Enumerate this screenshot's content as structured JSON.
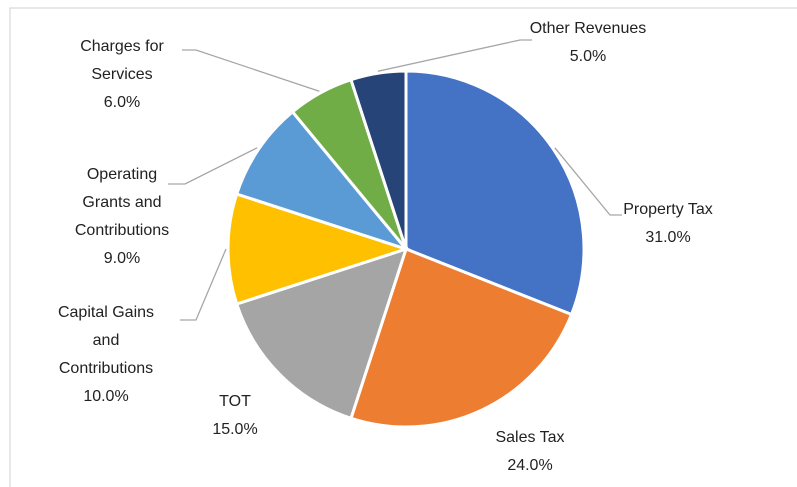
{
  "chart_data": {
    "type": "pie",
    "categories": [
      "Property Tax",
      "Sales Tax",
      "TOT",
      "Capital Gains and Contributions",
      "Operating Grants and Contributions",
      "Charges for Services",
      "Other Revenues"
    ],
    "values": [
      31,
      24,
      15,
      10,
      9,
      6,
      5
    ],
    "value_labels": [
      "31.0%",
      "24.0%",
      "15.0%",
      "10.0%",
      "9.0%",
      "6.0%",
      "5.0%"
    ],
    "colors": [
      "#4472c4",
      "#ed7d31",
      "#a5a5a5",
      "#ffc000",
      "#5b9bd5",
      "#70ad47",
      "#264478"
    ]
  }
}
